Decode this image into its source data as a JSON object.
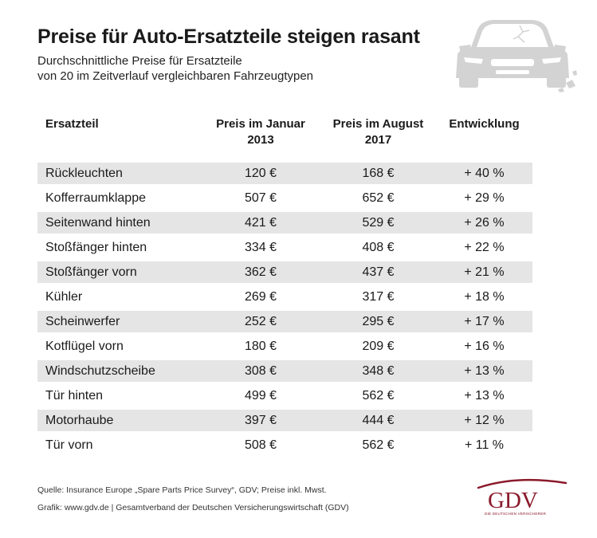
{
  "chart_data": {
    "type": "table",
    "title": "Preise für Auto-Ersatzteile steigen rasant",
    "subtitle_lines": [
      "Durchschnittliche Preise für Ersatzteile",
      "von 20 im Zeitverlauf vergleichbaren Fahrzeugtypen"
    ],
    "columns": {
      "part": "Ersatzteil",
      "jan_line1": "Preis im Januar",
      "jan_line2": "2013",
      "aug_line1": "Preis im August",
      "aug_line2": "2017",
      "dev": "Entwicklung"
    },
    "rows": [
      {
        "part": "Rückleuchten",
        "jan": "120 €",
        "aug": "168 €",
        "dev": "+ 40 %"
      },
      {
        "part": "Kofferraumklappe",
        "jan": "507 €",
        "aug": "652 €",
        "dev": "+ 29 %"
      },
      {
        "part": "Seitenwand hinten",
        "jan": "421 €",
        "aug": "529 €",
        "dev": "+ 26 %"
      },
      {
        "part": "Stoßfänger hinten",
        "jan": "334 €",
        "aug": "408 €",
        "dev": "+ 22 %"
      },
      {
        "part": "Stoßfänger vorn",
        "jan": "362 €",
        "aug": "437 €",
        "dev": "+ 21 %"
      },
      {
        "part": "Kühler",
        "jan": "269 €",
        "aug": "317 €",
        "dev": "+ 18 %"
      },
      {
        "part": "Scheinwerfer",
        "jan": "252 €",
        "aug": "295 €",
        "dev": "+ 17 %"
      },
      {
        "part": "Kotflügel vorn",
        "jan": "180 €",
        "aug": "209 €",
        "dev": "+ 16 %"
      },
      {
        "part": "Windschutzscheibe",
        "jan": "308 €",
        "aug": "348 €",
        "dev": "+ 13 %"
      },
      {
        "part": "Tür hinten",
        "jan": "499 €",
        "aug": "562 €",
        "dev": "+ 13 %"
      },
      {
        "part": "Motorhaube",
        "jan": "397 €",
        "aug": "444 €",
        "dev": "+ 12 %"
      },
      {
        "part": "Tür vorn",
        "jan": "508 €",
        "aug": "562 €",
        "dev": "+ 11 %"
      }
    ]
  },
  "footer": {
    "source": "Quelle: Insurance Europe „Spare Parts Price Survey“, GDV; Preise inkl. Mwst.",
    "credit": "Grafik: www.gdv.de | Gesamtverband der Deutschen Versicherungswirtschaft (GDV)"
  },
  "logo": {
    "text": "GDV",
    "tagline": "DIE DEUTSCHEN VERSICHERER",
    "color": "#8b1a2b"
  },
  "icons": {
    "car": "damaged-car-icon"
  },
  "colors": {
    "row_shade": "#e5e5e5",
    "car_gray": "#d3d3d3"
  }
}
